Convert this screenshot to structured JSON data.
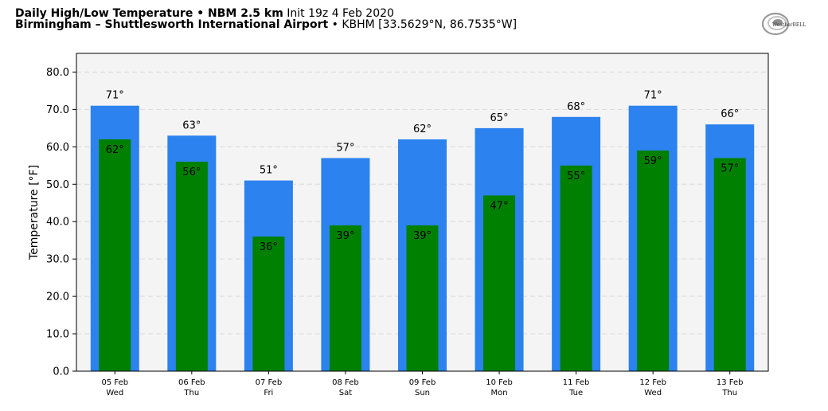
{
  "header": {
    "title_bold": "Daily High/Low Temperature • NBM 2.5 km",
    "title_normal": "Init 19z 4 Feb 2020",
    "location_bold": "Birmingham – Shuttlesworth International Airport",
    "location_normal": "• KBHM [33.5629°N, 86.7535°W]"
  },
  "logo": {
    "text": "WeatherBELL",
    "icon": "weatherbell-swirl-logo"
  },
  "colors": {
    "high": "#2c82ee",
    "low": "#008000",
    "plot_bg": "#f4f4f4",
    "grid": "#d9d9d9"
  },
  "chart_data": {
    "type": "bar",
    "ylabel": "Temperature [°F]",
    "ylim": [
      0,
      85
    ],
    "yticks": [
      0,
      10,
      20,
      30,
      40,
      50,
      60,
      70,
      80
    ],
    "grid": true,
    "categories": [
      "05 Feb",
      "06 Feb",
      "07 Feb",
      "08 Feb",
      "09 Feb",
      "10 Feb",
      "11 Feb",
      "12 Feb",
      "13 Feb"
    ],
    "days": [
      "Wed",
      "Thu",
      "Fri",
      "Sat",
      "Sun",
      "Mon",
      "Tue",
      "Wed",
      "Thu"
    ],
    "series": [
      {
        "values": [
          71,
          63,
          51,
          57,
          62,
          65,
          68,
          71,
          66
        ],
        "color": "#2c82ee"
      },
      {
        "values": [
          62,
          56,
          36,
          39,
          39,
          47,
          55,
          59,
          57
        ],
        "color": "#008000"
      }
    ]
  }
}
